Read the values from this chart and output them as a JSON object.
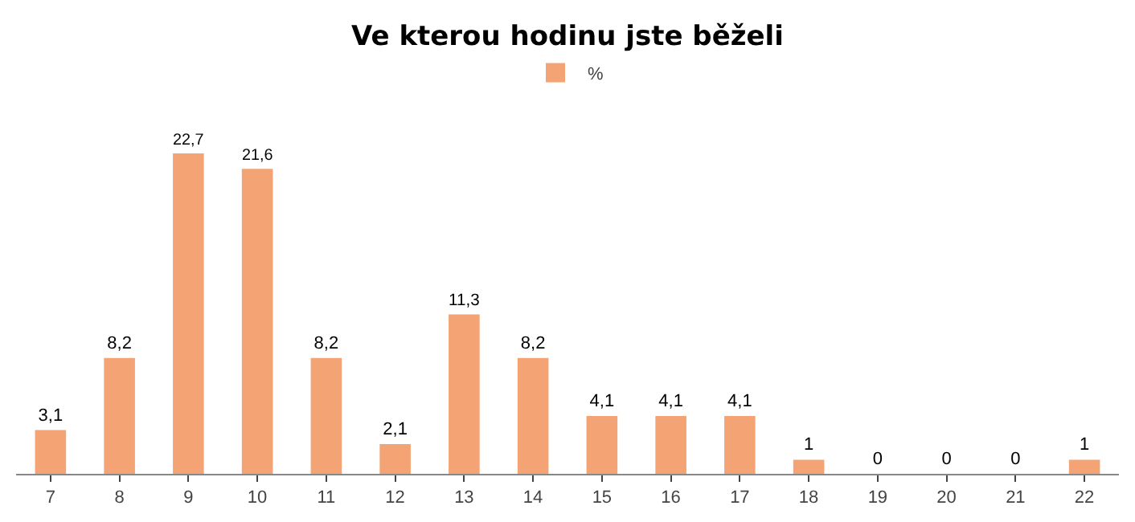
{
  "chart_data": {
    "type": "bar",
    "title": "Ve kterou hodinu jste běželi",
    "categories": [
      "7",
      "8",
      "9",
      "10",
      "11",
      "12",
      "13",
      "14",
      "15",
      "16",
      "17",
      "18",
      "19",
      "20",
      "21",
      "22"
    ],
    "series": [
      {
        "name": "%",
        "color": "#f4a474",
        "values": [
          3.1,
          8.2,
          22.7,
          21.6,
          8.2,
          2.1,
          11.3,
          8.2,
          4.1,
          4.1,
          4.1,
          1,
          0,
          0,
          0,
          1
        ],
        "value_labels": [
          "3,1",
          "8,2",
          "22,7",
          "21,6",
          "8,2",
          "2,1",
          "11,3",
          "8,2",
          "4,1",
          "4,1",
          "4,1",
          "1",
          "0",
          "0",
          "0",
          "1"
        ]
      }
    ],
    "tick_labels": "x",
    "legend": "top"
  }
}
